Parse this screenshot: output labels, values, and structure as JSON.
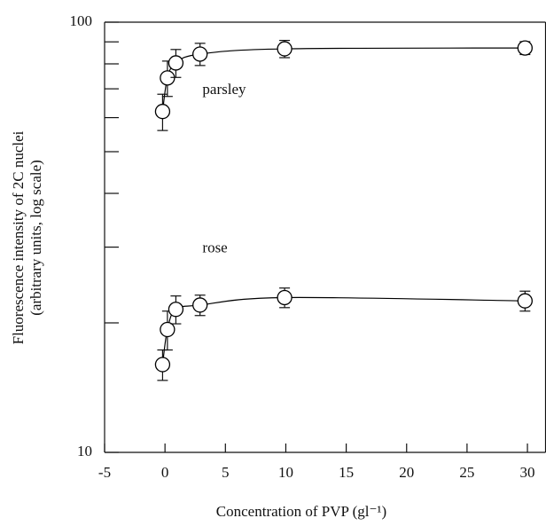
{
  "chart_data": {
    "type": "scatter",
    "x_label": "Concentration of PVP (gl⁻¹)",
    "y_label": [
      "Fluorescence intensity of 2C nuclei",
      "(arbitrary units, log scale)"
    ],
    "xlim": [
      -5,
      31.5
    ],
    "xticks": [
      -5,
      0,
      5,
      10,
      15,
      20,
      25,
      30
    ],
    "ylim": [
      10,
      100
    ],
    "yticks": [
      10,
      100
    ],
    "yminor": [
      20,
      30,
      40,
      50,
      60,
      70,
      80,
      90
    ],
    "log_y": true,
    "series": [
      {
        "name": "parsley",
        "color": "#000000",
        "x": [
          -0.2,
          0.2,
          0.9,
          2.9,
          9.9,
          29.8
        ],
        "values": [
          62,
          74.2,
          80.4,
          84.3,
          86.7,
          87.1
        ],
        "errors": [
          6,
          7,
          6,
          5,
          4,
          3
        ]
      },
      {
        "name": "rose",
        "color": "#000000",
        "x": [
          -0.2,
          0.2,
          0.9,
          2.9,
          9.9,
          29.8
        ],
        "values": [
          16,
          19.3,
          21.5,
          22,
          22.9,
          22.5
        ],
        "errors": [
          1.3,
          2,
          1.6,
          1.2,
          1.2,
          1.2
        ]
      }
    ]
  }
}
